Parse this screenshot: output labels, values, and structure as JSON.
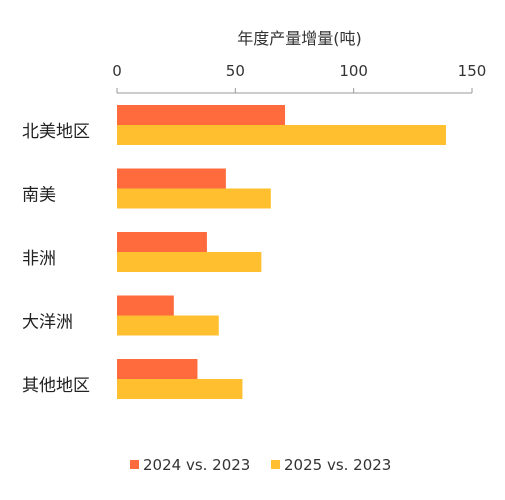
{
  "chart_data": {
    "type": "bar",
    "orientation": "horizontal",
    "title": "",
    "xlabel": "年度产量增量(吨)",
    "ylabel": "",
    "xlim": [
      0,
      150
    ],
    "xticks": [
      "0",
      "50",
      "100",
      "150"
    ],
    "xaxis_position": "top",
    "grid": false,
    "legend_position": "bottom",
    "categories": [
      "北美地区",
      "南美",
      "非洲",
      "大洋洲",
      "其他地区"
    ],
    "series": [
      {
        "name": "2024 vs. 2023",
        "color": "#FF6B3D",
        "values": [
          71,
          46,
          38,
          24,
          34
        ]
      },
      {
        "name": "2025 vs. 2023",
        "color": "#FFBF2F",
        "values": [
          139,
          65,
          61,
          43,
          53
        ]
      }
    ]
  }
}
